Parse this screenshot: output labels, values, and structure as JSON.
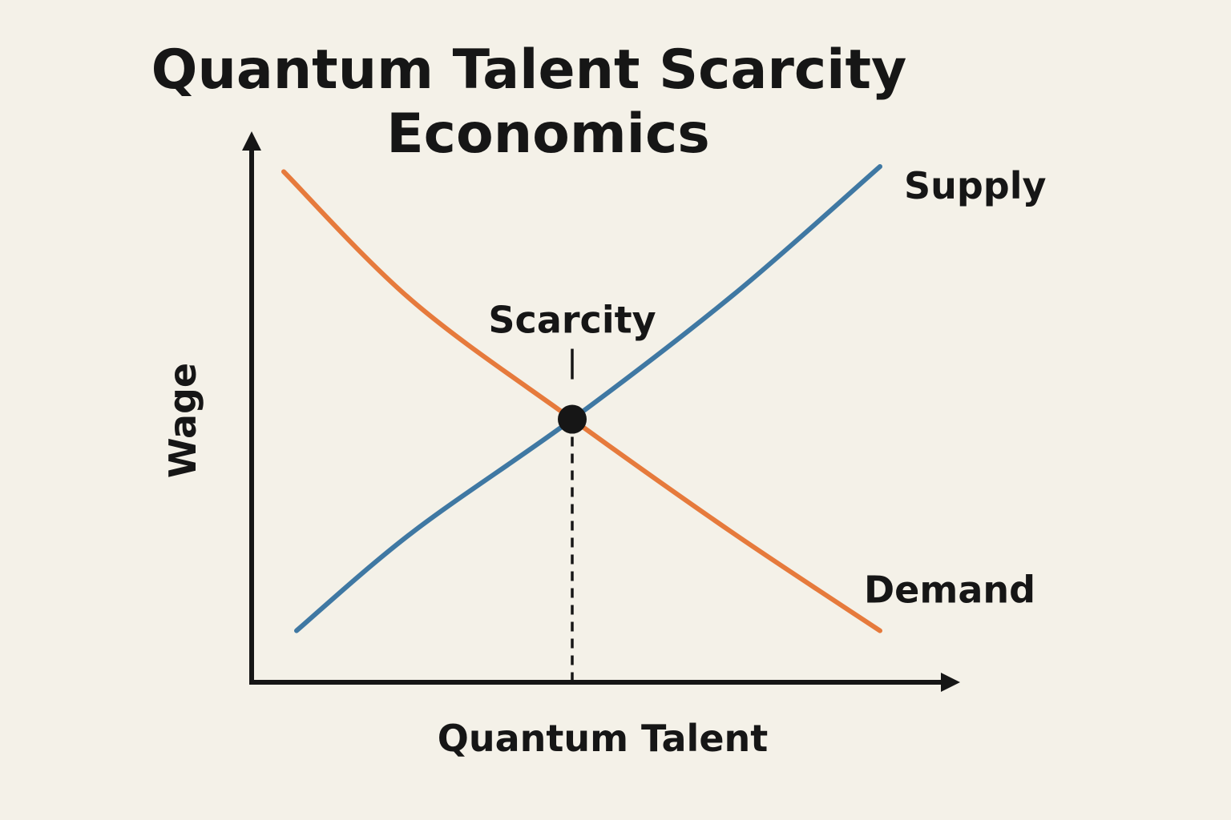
{
  "diagram": {
    "title_lines": [
      "Quantum Talent Scarcity",
      "Economics"
    ],
    "xlabel": "Quantum Talent",
    "ylabel": "Wage",
    "equilibrium_label": "Scarcity"
  },
  "chart_data": {
    "type": "line",
    "title": "Quantum Talent Scarcity Economics",
    "xlabel": "Quantum Talent",
    "ylabel": "Wage",
    "xlim": [
      0,
      10
    ],
    "ylim": [
      0,
      10
    ],
    "grid": false,
    "legend": "labels at curve ends (right)",
    "series": [
      {
        "name": "Supply",
        "color": "#3f78a3",
        "points": [
          [
            0.7,
            1.0
          ],
          [
            2.5,
            2.9
          ],
          [
            5.0,
            5.1
          ],
          [
            7.5,
            7.5
          ],
          [
            9.8,
            10.0
          ]
        ]
      },
      {
        "name": "Demand",
        "color": "#e67a3c",
        "points": [
          [
            0.5,
            9.9
          ],
          [
            2.5,
            7.4
          ],
          [
            5.0,
            5.1
          ],
          [
            7.5,
            2.9
          ],
          [
            9.8,
            1.0
          ]
        ]
      }
    ],
    "annotations": [
      {
        "type": "point",
        "label": "Scarcity",
        "x": 5.0,
        "y": 5.1,
        "color": "#161616"
      },
      {
        "type": "vline-dashed",
        "x": 5.0
      }
    ]
  }
}
